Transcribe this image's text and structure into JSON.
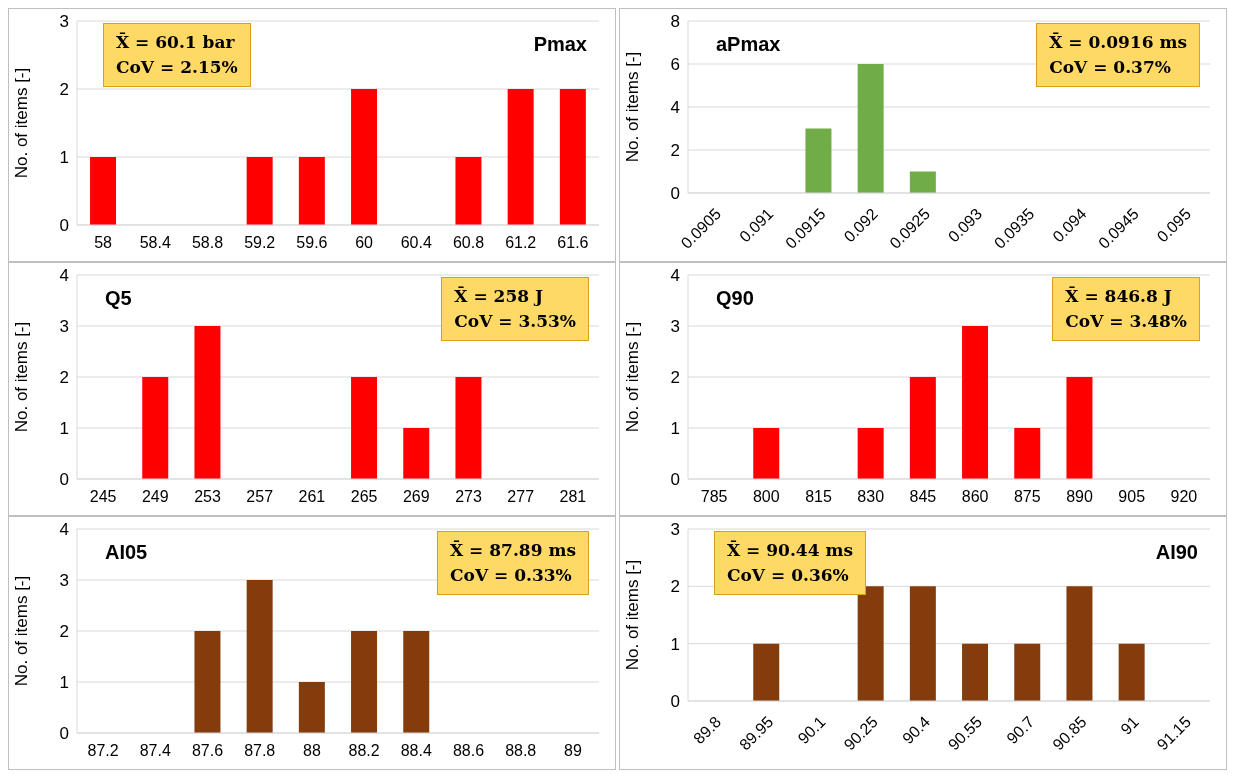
{
  "chart_data": [
    {
      "type": "bar",
      "title": "Pmax",
      "ylabel": "No. of items [-]",
      "categories": [
        "58",
        "58.4",
        "58.8",
        "59.2",
        "59.6",
        "60",
        "60.4",
        "60.8",
        "61.2",
        "61.6"
      ],
      "values": [
        1,
        0,
        0,
        1,
        1,
        2,
        0,
        1,
        2,
        2
      ],
      "color": "#ff0000",
      "ylim": [
        0,
        3
      ],
      "yticks": [
        0,
        1,
        2,
        3
      ],
      "grid": "y",
      "annotations": [
        "X̄ = 60.1 bar",
        "CoV = 2.15%"
      ]
    },
    {
      "type": "bar",
      "title": "aPmax",
      "ylabel": "No. of items [-]",
      "categories": [
        "0.0905",
        "0.091",
        "0.0915",
        "0.092",
        "0.0925",
        "0.093",
        "0.0935",
        "0.094",
        "0.0945",
        "0.095"
      ],
      "values": [
        0,
        0,
        3,
        6,
        1,
        0,
        0,
        0,
        0,
        0
      ],
      "color": "#70ad47",
      "ylim": [
        0,
        8
      ],
      "yticks": [
        0,
        2,
        4,
        6,
        8
      ],
      "grid": "y",
      "annotations": [
        "X̄ = 0.0916 ms",
        "CoV = 0.37%"
      ]
    },
    {
      "type": "bar",
      "title": "Q5",
      "ylabel": "No. of items [-]",
      "categories": [
        "245",
        "249",
        "253",
        "257",
        "261",
        "265",
        "269",
        "273",
        "277",
        "281"
      ],
      "values": [
        0,
        2,
        3,
        0,
        0,
        2,
        1,
        2,
        0,
        0
      ],
      "color": "#ff0000",
      "ylim": [
        0,
        4
      ],
      "yticks": [
        0,
        1,
        2,
        3,
        4
      ],
      "grid": "y",
      "annotations": [
        "X̄ = 258 J",
        "CoV = 3.53%"
      ]
    },
    {
      "type": "bar",
      "title": "Q90",
      "ylabel": "No. of items [-]",
      "categories": [
        "785",
        "800",
        "815",
        "830",
        "845",
        "860",
        "875",
        "890",
        "905",
        "920"
      ],
      "values": [
        0,
        1,
        0,
        1,
        2,
        3,
        1,
        2,
        0,
        0
      ],
      "color": "#ff0000",
      "ylim": [
        0,
        4
      ],
      "yticks": [
        0,
        1,
        2,
        3,
        4
      ],
      "grid": "y",
      "annotations": [
        "X̄ = 846.8 J",
        "CoV = 3.48%"
      ]
    },
    {
      "type": "bar",
      "title": "AI05",
      "ylabel": "No. of items [-]",
      "categories": [
        "87.2",
        "87.4",
        "87.6",
        "87.8",
        "88",
        "88.2",
        "88.4",
        "88.6",
        "88.8",
        "89"
      ],
      "values": [
        0,
        0,
        2,
        3,
        1,
        2,
        2,
        0,
        0,
        0
      ],
      "color": "#843c0c",
      "ylim": [
        0,
        4
      ],
      "yticks": [
        0,
        1,
        2,
        3,
        4
      ],
      "grid": "y",
      "annotations": [
        "X̄ = 87.89 ms",
        "CoV = 0.33%"
      ]
    },
    {
      "type": "bar",
      "title": "AI90",
      "ylabel": "No. of items [-]",
      "categories": [
        "89.8",
        "89.95",
        "90.1",
        "90.25",
        "90.4",
        "90.55",
        "90.7",
        "90.85",
        "91",
        "91.15"
      ],
      "values": [
        0,
        1,
        0,
        2,
        2,
        1,
        1,
        2,
        1,
        0
      ],
      "color": "#843c0c",
      "ylim": [
        0,
        3
      ],
      "yticks": [
        0,
        1,
        2,
        3
      ],
      "grid": "y",
      "annotations": [
        "X̄ = 90.44 ms",
        "CoV = 0.36%"
      ]
    }
  ]
}
